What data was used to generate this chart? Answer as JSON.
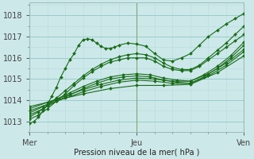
{
  "xlabel": "Pression niveau de la mer( hPa )",
  "ylim": [
    1012.5,
    1018.6
  ],
  "xlim": [
    0,
    48
  ],
  "xtick_positions": [
    0,
    24,
    48
  ],
  "xtick_labels": [
    "Mer",
    "Jeu",
    "Ven"
  ],
  "ytick_positions": [
    1013,
    1014,
    1015,
    1016,
    1017,
    1018
  ],
  "bg_color": "#cce8e8",
  "grid_major_color": "#99cccc",
  "grid_minor_color": "#b8dddd",
  "line_color": "#1a6b1a",
  "lines": [
    {
      "x": [
        0,
        1,
        2,
        3,
        4,
        5,
        6,
        7,
        8,
        9,
        10,
        11,
        12,
        13,
        14,
        15,
        16,
        17,
        18,
        19,
        20,
        22,
        24,
        26,
        28,
        30,
        32,
        34,
        36,
        38,
        40,
        42,
        44,
        46,
        48
      ],
      "y": [
        1012.9,
        1013.0,
        1013.2,
        1013.5,
        1013.8,
        1014.2,
        1014.6,
        1015.1,
        1015.5,
        1015.9,
        1016.2,
        1016.6,
        1016.85,
        1016.9,
        1016.85,
        1016.7,
        1016.55,
        1016.45,
        1016.45,
        1016.5,
        1016.6,
        1016.7,
        1016.65,
        1016.55,
        1016.2,
        1015.9,
        1015.85,
        1016.0,
        1016.2,
        1016.6,
        1017.0,
        1017.3,
        1017.6,
        1017.85,
        1018.1
      ]
    },
    {
      "x": [
        0,
        2,
        4,
        6,
        8,
        10,
        12,
        14,
        16,
        18,
        20,
        22,
        24,
        26,
        28,
        30,
        32,
        34,
        36,
        38,
        40,
        42,
        44,
        46,
        48
      ],
      "y": [
        1013.1,
        1013.3,
        1013.6,
        1013.95,
        1014.3,
        1014.7,
        1015.05,
        1015.35,
        1015.6,
        1015.8,
        1015.9,
        1016.0,
        1016.0,
        1016.0,
        1015.85,
        1015.6,
        1015.45,
        1015.4,
        1015.4,
        1015.6,
        1015.9,
        1016.2,
        1016.5,
        1016.8,
        1017.1
      ]
    },
    {
      "x": [
        0,
        2,
        4,
        6,
        8,
        10,
        12,
        14,
        16,
        18,
        20,
        22,
        24,
        26,
        28,
        30,
        32,
        34,
        36,
        38,
        40,
        42,
        44,
        46,
        48
      ],
      "y": [
        1013.2,
        1013.45,
        1013.75,
        1014.1,
        1014.45,
        1014.8,
        1015.15,
        1015.45,
        1015.7,
        1015.9,
        1016.05,
        1016.15,
        1016.2,
        1016.15,
        1016.0,
        1015.75,
        1015.55,
        1015.45,
        1015.45,
        1015.65,
        1016.0,
        1016.35,
        1016.7,
        1017.1,
        1017.5
      ]
    },
    {
      "x": [
        0,
        3,
        6,
        9,
        12,
        15,
        18,
        21,
        24,
        27,
        30,
        33,
        36,
        39,
        42,
        45,
        48
      ],
      "y": [
        1013.3,
        1013.6,
        1013.95,
        1014.25,
        1014.55,
        1014.8,
        1015.0,
        1015.1,
        1015.15,
        1015.1,
        1014.95,
        1014.85,
        1014.8,
        1015.1,
        1015.5,
        1016.0,
        1016.6
      ]
    },
    {
      "x": [
        0,
        3,
        6,
        9,
        12,
        15,
        18,
        21,
        24,
        27,
        30,
        33,
        36,
        39,
        42,
        45,
        48
      ],
      "y": [
        1013.4,
        1013.7,
        1014.05,
        1014.35,
        1014.65,
        1014.9,
        1015.1,
        1015.2,
        1015.25,
        1015.2,
        1015.05,
        1014.95,
        1014.9,
        1015.2,
        1015.6,
        1016.1,
        1016.75
      ]
    },
    {
      "x": [
        0,
        4,
        8,
        12,
        16,
        20,
        24,
        28,
        32,
        36,
        40,
        44,
        48
      ],
      "y": [
        1013.5,
        1013.8,
        1014.1,
        1014.4,
        1014.65,
        1014.85,
        1014.95,
        1014.9,
        1014.8,
        1014.8,
        1015.15,
        1015.65,
        1016.3
      ]
    },
    {
      "x": [
        0,
        4,
        8,
        12,
        16,
        20,
        24,
        28,
        32,
        36,
        40,
        44,
        48
      ],
      "y": [
        1013.6,
        1013.9,
        1014.2,
        1014.5,
        1014.75,
        1014.95,
        1015.05,
        1015.0,
        1014.9,
        1014.9,
        1015.25,
        1015.75,
        1016.4
      ]
    },
    {
      "x": [
        0,
        6,
        12,
        18,
        24,
        30,
        36,
        42,
        48
      ],
      "y": [
        1013.7,
        1014.0,
        1014.3,
        1014.55,
        1014.7,
        1014.7,
        1014.75,
        1015.3,
        1016.1
      ]
    }
  ],
  "vline_x": [
    0,
    24,
    48
  ],
  "vline_color": "#7aaa7a"
}
